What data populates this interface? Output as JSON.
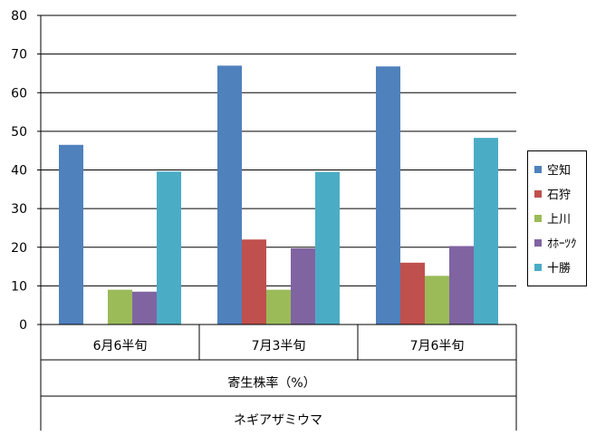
{
  "chart_data": {
    "type": "bar",
    "categories": [
      "6月6半旬",
      "7月3半旬",
      "7月6半旬"
    ],
    "series": [
      {
        "name": "空知",
        "color": "#4f81bd",
        "values": [
          46.5,
          67.0,
          66.8
        ]
      },
      {
        "name": "石狩",
        "color": "#c0504d",
        "values": [
          0,
          22.0,
          16.0
        ]
      },
      {
        "name": "上川",
        "color": "#9bbb59",
        "values": [
          9.0,
          9.0,
          12.6
        ]
      },
      {
        "name": "ｵﾎｰﾂｸ",
        "color": "#8064a2",
        "values": [
          8.5,
          19.7,
          20.3
        ]
      },
      {
        "name": "十勝",
        "color": "#4bacc6",
        "values": [
          39.6,
          39.5,
          48.3
        ]
      }
    ],
    "ylim": [
      0,
      80
    ],
    "yticks": [
      0,
      10,
      20,
      30,
      40,
      50,
      60,
      70,
      80
    ],
    "grid": true,
    "legend_position": "right",
    "x_group_labels": [
      "寄生株率（%）",
      "ネギアザミウマ"
    ]
  }
}
